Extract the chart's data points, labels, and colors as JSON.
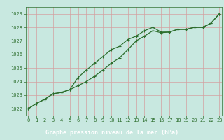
{
  "title": "Graphe pression niveau de la mer (hPa)",
  "hours": [
    0,
    1,
    2,
    3,
    4,
    5,
    6,
    7,
    8,
    9,
    10,
    11,
    12,
    13,
    14,
    15,
    16,
    17,
    18,
    19,
    20,
    21,
    22,
    23
  ],
  "ylim": [
    1021.5,
    1029.5
  ],
  "xlim": [
    -0.3,
    23.3
  ],
  "yticks": [
    1022,
    1023,
    1024,
    1025,
    1026,
    1027,
    1028,
    1029
  ],
  "xticks": [
    0,
    1,
    2,
    3,
    4,
    5,
    6,
    7,
    8,
    9,
    10,
    11,
    12,
    13,
    14,
    15,
    16,
    17,
    18,
    19,
    20,
    21,
    22,
    23
  ],
  "series1": [
    1022.0,
    1022.4,
    1022.7,
    1023.1,
    1023.2,
    1023.4,
    1023.7,
    1024.0,
    1024.4,
    1024.85,
    1025.35,
    1025.75,
    1026.35,
    1027.0,
    1027.35,
    1027.75,
    1027.6,
    1027.65,
    1027.85,
    1027.85,
    1028.0,
    1028.0,
    1028.3,
    1029.0
  ],
  "series2": [
    1022.0,
    1022.4,
    1022.7,
    1023.1,
    1023.2,
    1023.4,
    1024.3,
    1024.85,
    1025.35,
    1025.85,
    1026.35,
    1026.6,
    1027.1,
    1027.35,
    1027.75,
    1028.0,
    1027.65,
    1027.65,
    1027.85,
    1027.85,
    1028.0,
    1028.0,
    1028.3,
    1029.0
  ],
  "line_color": "#2d6e2d",
  "bg_color": "#c8e8e0",
  "grid_color": "#d4a0a0",
  "title_bg_color": "#2d6e2d",
  "title_text_color": "#ffffff",
  "tick_color": "#2d6e2d",
  "markersize": 2.0,
  "linewidth": 0.9,
  "tick_fontsize": 5.0,
  "title_fontsize": 6.0
}
